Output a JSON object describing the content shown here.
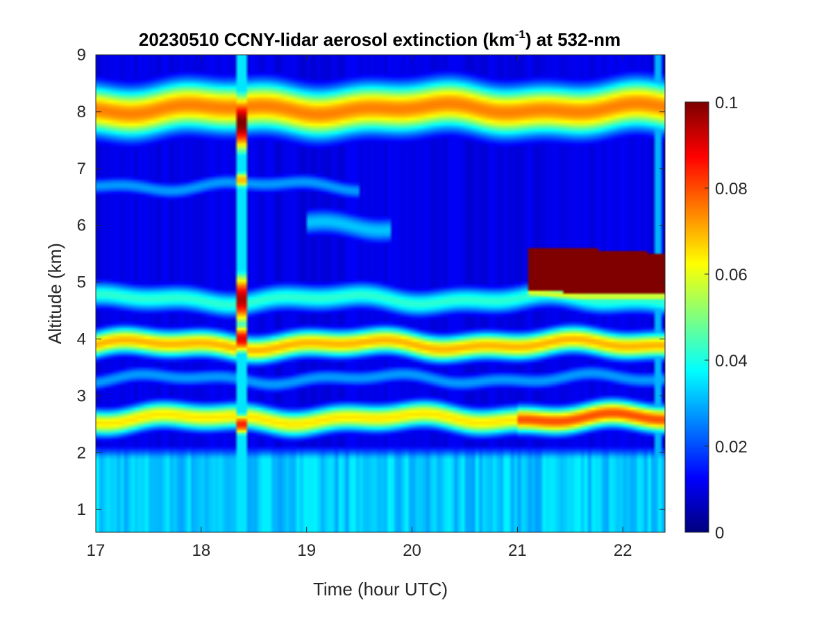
{
  "chart_data": {
    "type": "heatmap",
    "title": {
      "prefix": "20230510 CCNY-lidar aerosol extinction (km",
      "superscript": "-1",
      "suffix": ") at 532-nm"
    },
    "xlabel": "Time (hour UTC)",
    "ylabel": "Altitude (km)",
    "xlim": [
      17,
      22.4
    ],
    "ylim": [
      0.6,
      9
    ],
    "xticks": [
      17,
      18,
      19,
      20,
      21,
      22
    ],
    "xtick_labels": [
      "17",
      "18",
      "19",
      "20",
      "21",
      "22"
    ],
    "yticks": [
      1,
      2,
      3,
      4,
      5,
      6,
      7,
      8,
      9
    ],
    "ytick_labels": [
      "1",
      "2",
      "3",
      "4",
      "5",
      "6",
      "7",
      "8",
      "9"
    ],
    "colorbar": {
      "colormap": "jet",
      "clim": [
        0,
        0.1
      ],
      "ticks": [
        0,
        0.02,
        0.04,
        0.06,
        0.08,
        0.1
      ],
      "tick_labels": [
        "0",
        "0.02",
        "0.04",
        "0.06",
        "0.08",
        "0.1"
      ]
    },
    "time_resolution_hours": 0.0333,
    "altitude_resolution_km": 0.05,
    "features": [
      {
        "name": "boundary layer",
        "time": [
          17,
          22.4
        ],
        "alt_km": [
          0.6,
          2.1
        ],
        "value": 0.035
      },
      {
        "name": "layer ~2.5 km",
        "time": [
          17,
          22.4
        ],
        "alt_km": [
          2.3,
          2.9
        ],
        "value": 0.065,
        "heavy_segment_time": [
          21.0,
          22.4
        ],
        "heavy_value": 0.08
      },
      {
        "name": "layer ~3.3 km",
        "time": [
          17,
          22.4
        ],
        "alt_km": [
          3.1,
          3.5
        ],
        "value": 0.028
      },
      {
        "name": "layer ~3.9 km",
        "time": [
          17,
          22.4
        ],
        "alt_km": [
          3.6,
          4.2
        ],
        "value": 0.07
      },
      {
        "name": "layer ~4.7 km",
        "time": [
          17,
          22.4
        ],
        "alt_km": [
          4.4,
          5.0
        ],
        "value": 0.042
      },
      {
        "name": "thick plume ~5.2 km",
        "time": [
          21.1,
          22.4
        ],
        "alt_km": [
          4.8,
          5.6
        ],
        "value": 0.1
      },
      {
        "name": "patch ~6 km",
        "time": [
          19.0,
          19.8
        ],
        "alt_km": [
          5.7,
          6.3
        ],
        "value": 0.032
      },
      {
        "name": "faint layer ~6.7 km",
        "time": [
          17,
          19.5
        ],
        "alt_km": [
          6.5,
          6.9
        ],
        "value": 0.028
      },
      {
        "name": "elevated layer ~8 km",
        "time": [
          17,
          22.4
        ],
        "alt_km": [
          7.5,
          8.6
        ],
        "value": 0.075
      },
      {
        "name": "anomalous profile",
        "time": [
          18.35,
          18.43
        ],
        "alt_km": [
          0.6,
          9
        ],
        "value": 0.05
      }
    ]
  }
}
